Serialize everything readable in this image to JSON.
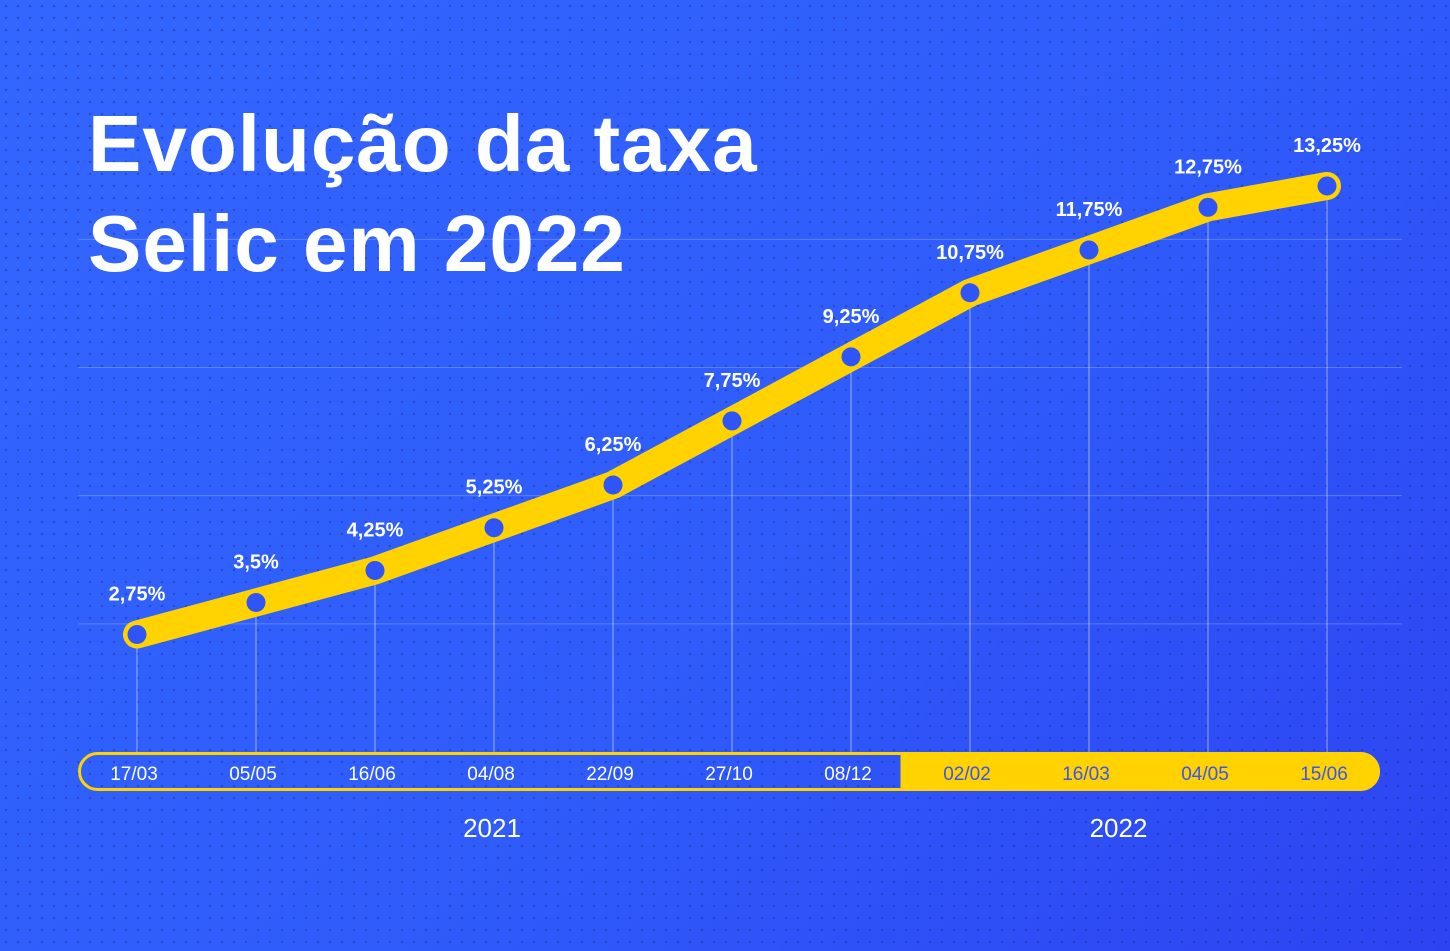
{
  "title": {
    "line1": "Evolução da taxa",
    "line2": "Selic em 2022"
  },
  "colors": {
    "background": "#3060fb",
    "line": "#ffd200",
    "marker": "#2f55f8",
    "text": "#ffffff"
  },
  "chart_data": {
    "type": "line",
    "title": "Evolução da taxa Selic em 2022",
    "categories": [
      "17/03",
      "05/05",
      "16/06",
      "04/08",
      "22/09",
      "27/10",
      "08/12",
      "02/02",
      "16/03",
      "04/05",
      "15/06"
    ],
    "values": [
      2.75,
      3.5,
      4.25,
      5.25,
      6.25,
      7.75,
      9.25,
      10.75,
      11.75,
      12.75,
      13.25
    ],
    "data_labels": [
      "2,75%",
      "3,5%",
      "4,25%",
      "5,25%",
      "6,25%",
      "7,75%",
      "9,25%",
      "10,75%",
      "11,75%",
      "12,75%",
      "13,25%"
    ],
    "year_groups": [
      {
        "label": "2021",
        "count": 7
      },
      {
        "label": "2022",
        "count": 4
      }
    ],
    "ylim": [
      0,
      13.25
    ],
    "gridlines": [
      3,
      6,
      9,
      12
    ],
    "grid": true,
    "legend": "none"
  }
}
